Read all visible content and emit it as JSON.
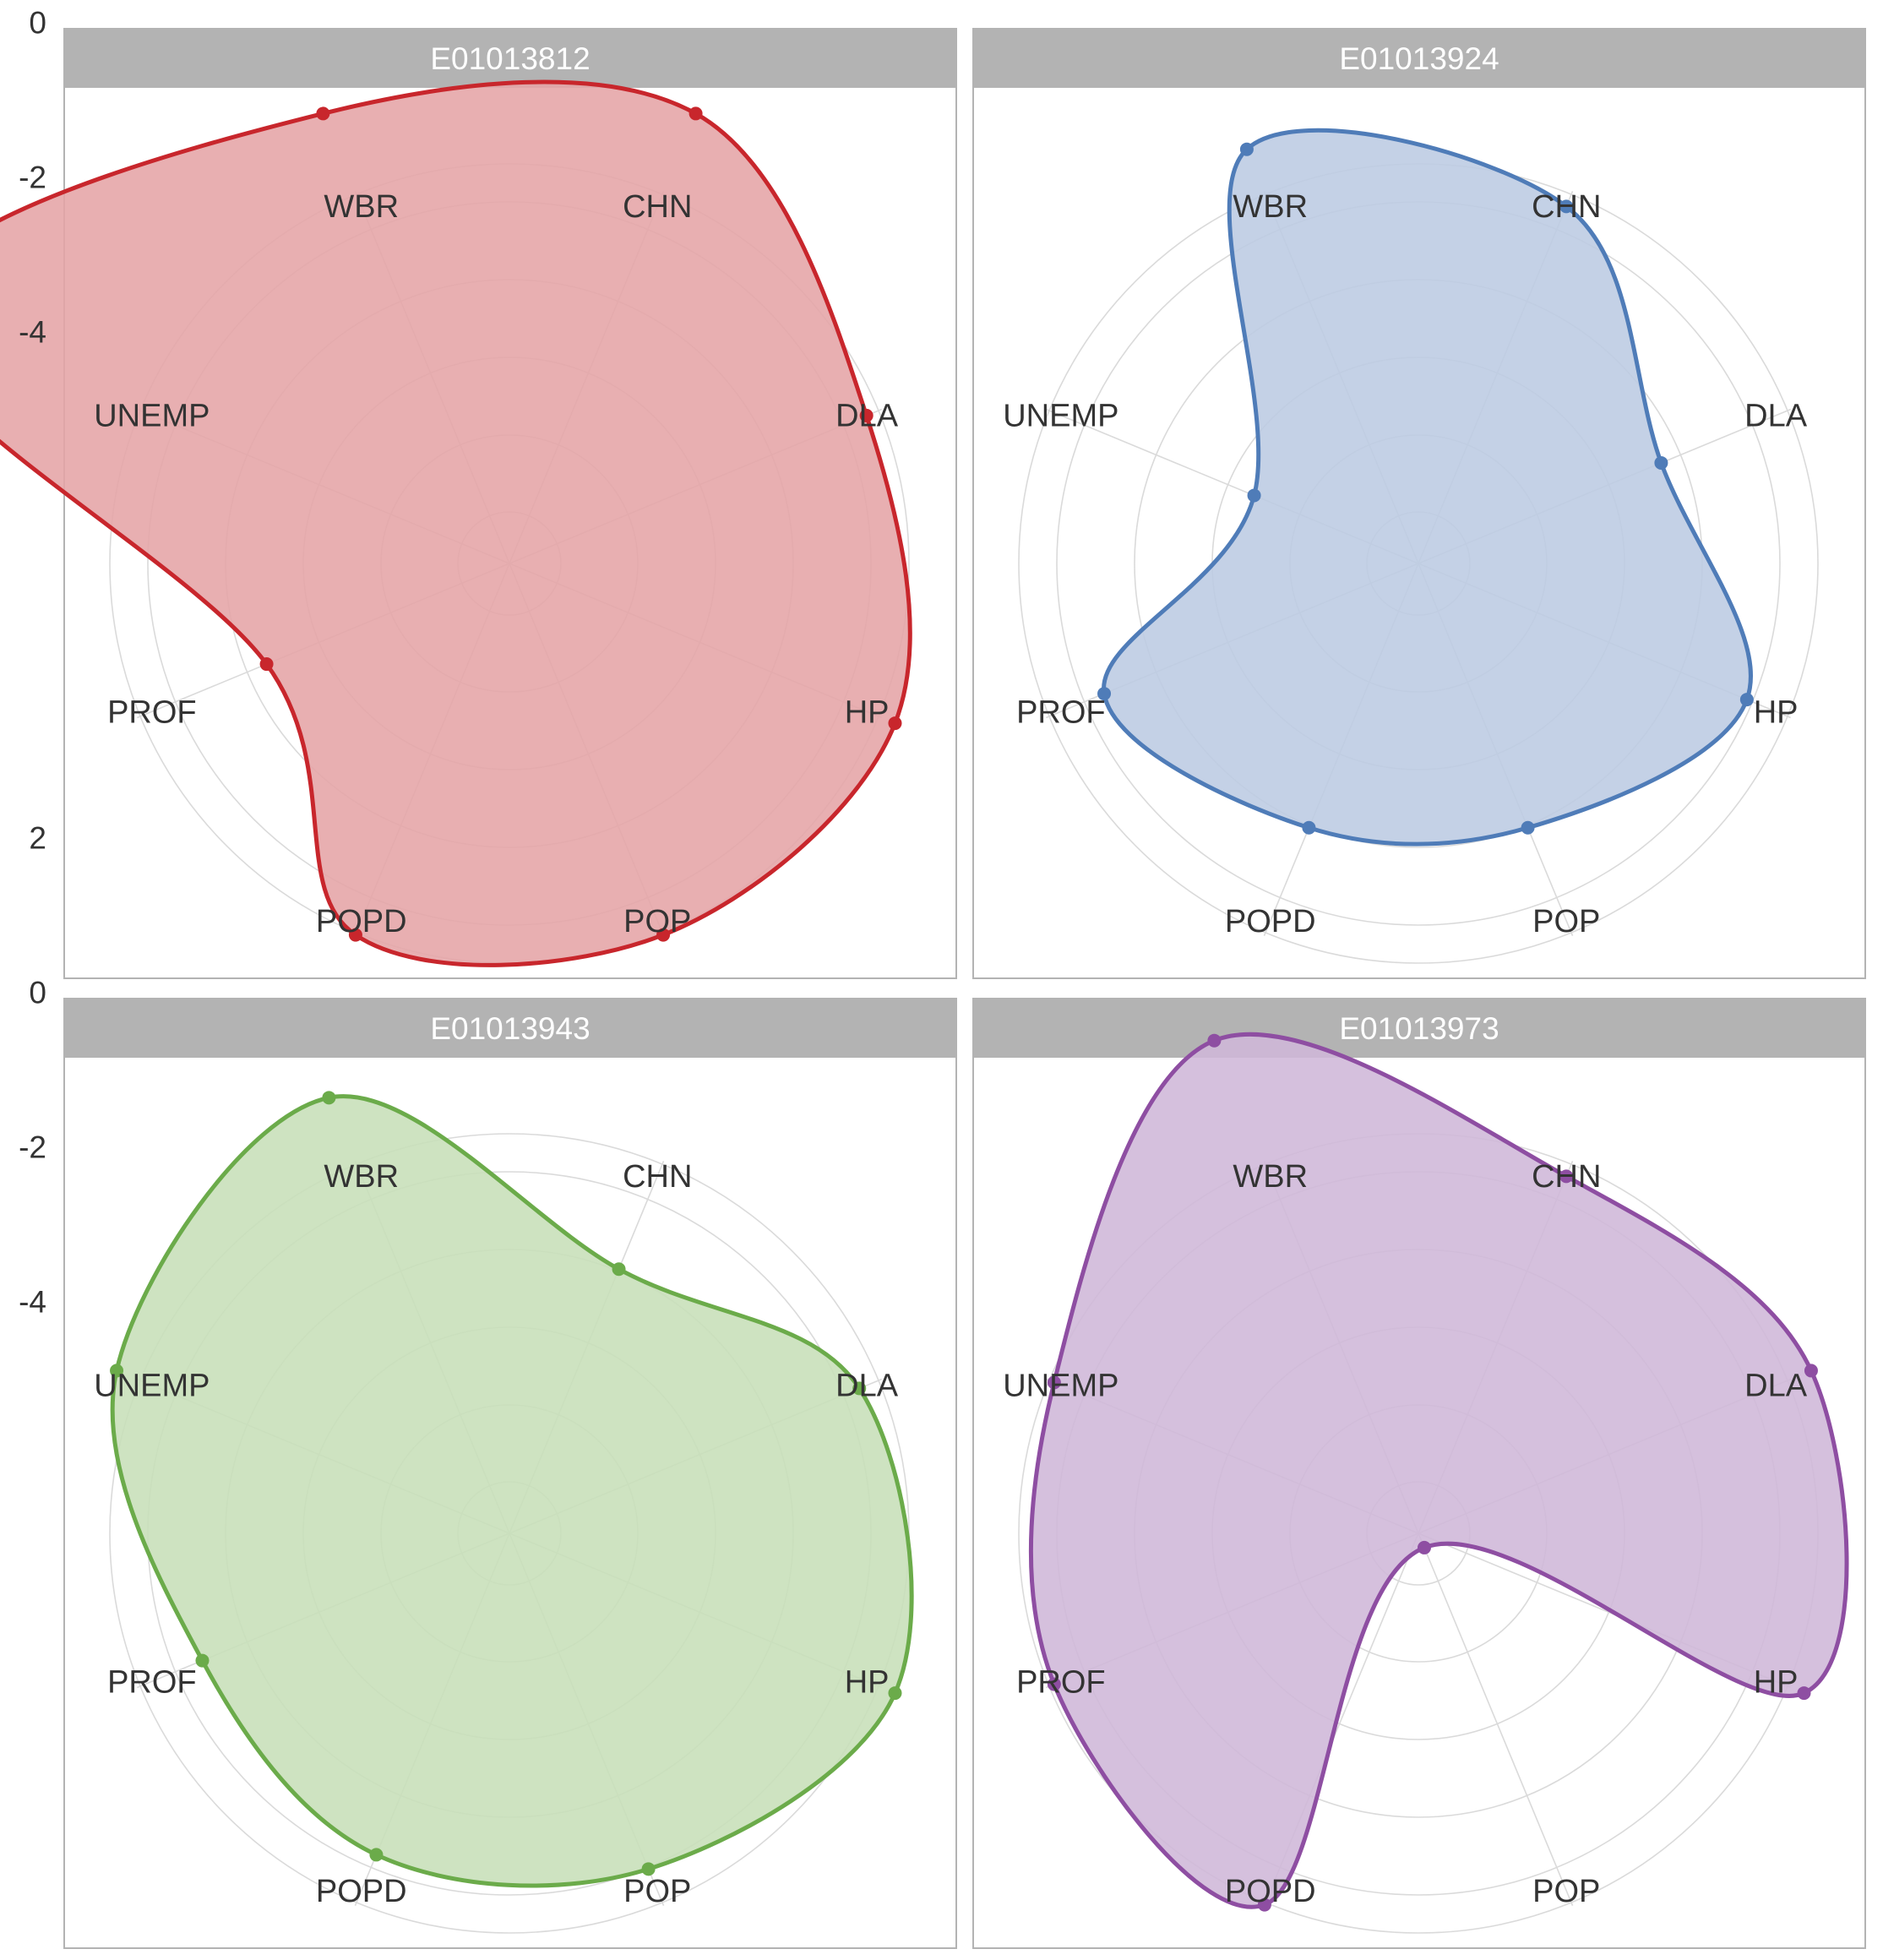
{
  "chart_data": {
    "type": "radar",
    "axes": [
      "CHN",
      "DLA",
      "HP",
      "POP",
      "POPD",
      "PROF",
      "UNEMP",
      "WBR"
    ],
    "radial_ticks": [
      "2",
      "0",
      "-2",
      "-4"
    ],
    "radial_tick_values": [
      2,
      0,
      -2,
      -4
    ],
    "rlim": [
      -7,
      3.5
    ],
    "grid": true,
    "panels": [
      {
        "title": "E01013812",
        "color": "#c8262c",
        "fill": "#e5a4a6",
        "values": [
          -0.7,
          -2.0,
          -1.6,
          -1.8,
          -1.8,
          -3.6,
          1.5,
          -0.7
        ]
      },
      {
        "title": "E01013924",
        "color": "#4f7cb8",
        "fill": "#bccbe3",
        "values": [
          -2.0,
          -3.6,
          -2.4,
          -3.3,
          -3.3,
          -2.6,
          -4.7,
          -1.2
        ]
      },
      {
        "title": "E01013943",
        "color": "#6bab4a",
        "fill": "#c7dfb8",
        "values": [
          -3.3,
          -2.1,
          -1.6,
          -2.3,
          -2.5,
          -2.7,
          -1.5,
          -0.9
        ]
      },
      {
        "title": "E01013973",
        "color": "#8e4ea2",
        "fill": "#cfb7d8",
        "values": [
          -2.0,
          -1.5,
          -1.6,
          -6.8,
          -1.8,
          -1.9,
          -1.9,
          -0.1
        ]
      }
    ]
  }
}
